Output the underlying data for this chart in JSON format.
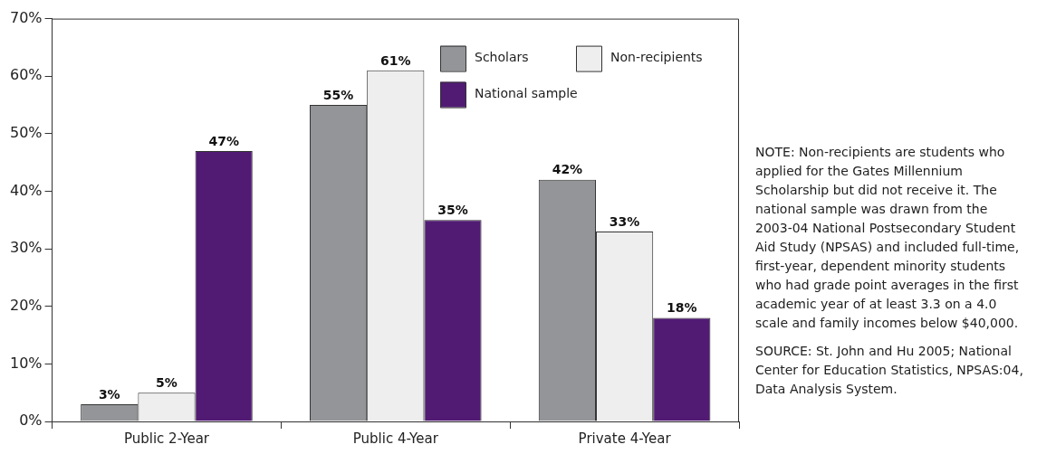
{
  "chart_data": {
    "type": "bar",
    "categories": [
      "Public 2-Year",
      "Public 4-Year",
      "Private 4-Year"
    ],
    "series": [
      {
        "name": "Scholars",
        "color": "#939598",
        "values": [
          3,
          55,
          42
        ],
        "value_labels": [
          "3%",
          "55%",
          "42%"
        ]
      },
      {
        "name": "Non-recipients",
        "color": "#eeeeee",
        "values": [
          5,
          61,
          33
        ],
        "value_labels": [
          "5%",
          "61%",
          "33%"
        ]
      },
      {
        "name": "National sample",
        "color": "#511b74",
        "values": [
          47,
          35,
          18
        ],
        "value_labels": [
          "47%",
          "35%",
          "18%"
        ]
      }
    ],
    "ylim": [
      0,
      70
    ],
    "yticks": [
      {
        "value": 0,
        "label": "0%"
      },
      {
        "value": 10,
        "label": "10%"
      },
      {
        "value": 20,
        "label": "20%"
      },
      {
        "value": 30,
        "label": "30%"
      },
      {
        "value": 40,
        "label": "40%"
      },
      {
        "value": 50,
        "label": "50%"
      },
      {
        "value": 60,
        "label": "60%"
      },
      {
        "value": 70,
        "label": "70%"
      }
    ],
    "grid": false,
    "legend": "top right",
    "annotations": [
      "NOTE: Non-recipients are students who applied for the Gates Millennium Scholarship but did not receive it. The national sample was drawn from the 2003-04 National Postsecondary Student Aid Study (NPSAS) and included full-time, first-year, dependent minority students who had grade point averages in the first academic year of at least 3.3 on a 4.0 scale and family incomes below $40,000.",
      "SOURCE: St. John and Hu 2005; National Center for Education Statistics, NPSAS:04, Data Analysis System."
    ]
  }
}
